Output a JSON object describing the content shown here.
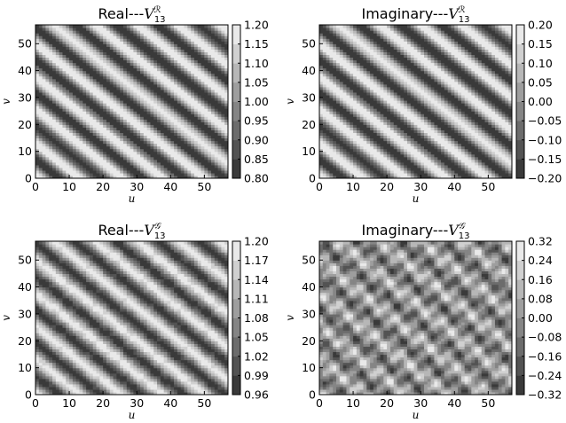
{
  "chart_data": [
    {
      "type": "heatmap",
      "title_prefix": "Real---",
      "title_sym": "V",
      "title_sub": "13",
      "title_sup": "ℛ",
      "xlabel": "u",
      "ylabel": "v",
      "xlim": [
        0,
        57
      ],
      "ylim": [
        0,
        57
      ],
      "xticks": [
        "0",
        "10",
        "20",
        "30",
        "40",
        "50"
      ],
      "yticks": [
        "0",
        "10",
        "20",
        "30",
        "40",
        "50"
      ],
      "period": 12.3,
      "noise": 0,
      "colorbar": {
        "min": 0.8,
        "max": 1.2,
        "ticks": [
          "1.20",
          "1.15",
          "1.10",
          "1.05",
          "1.00",
          "0.95",
          "0.90",
          "0.85",
          "0.80"
        ],
        "levels": 8
      }
    },
    {
      "type": "heatmap",
      "title_prefix": "Imaginary---",
      "title_sym": "V",
      "title_sub": "13",
      "title_sup": "ℛ",
      "xlabel": "u",
      "ylabel": "v",
      "xlim": [
        0,
        57
      ],
      "ylim": [
        0,
        57
      ],
      "xticks": [
        "0",
        "10",
        "20",
        "30",
        "40",
        "50"
      ],
      "yticks": [
        "0",
        "10",
        "20",
        "30",
        "40",
        "50"
      ],
      "period": 12.3,
      "noise": 0,
      "colorbar": {
        "min": -0.2,
        "max": 0.2,
        "ticks": [
          "0.20",
          "0.15",
          "0.10",
          "0.05",
          "0.00",
          "−0.05",
          "−0.10",
          "−0.15",
          "−0.20"
        ],
        "levels": 8
      }
    },
    {
      "type": "heatmap",
      "title_prefix": "Real---",
      "title_sym": "V",
      "title_sub": "13",
      "title_sup": "𝒢",
      "xlabel": "u",
      "ylabel": "v",
      "xlim": [
        0,
        57
      ],
      "ylim": [
        0,
        57
      ],
      "xticks": [
        "0",
        "10",
        "20",
        "30",
        "40",
        "50"
      ],
      "yticks": [
        "0",
        "10",
        "20",
        "30",
        "40",
        "50"
      ],
      "period": 12.3,
      "noise": 0.12,
      "colorbar": {
        "min": 0.96,
        "max": 1.2,
        "ticks": [
          "1.20",
          "1.17",
          "1.14",
          "1.11",
          "1.08",
          "1.05",
          "1.02",
          "0.99",
          "0.96"
        ],
        "levels": 8
      }
    },
    {
      "type": "heatmap",
      "title_prefix": "Imaginary---",
      "title_sym": "V",
      "title_sub": "13",
      "title_sup": "𝒢",
      "xlabel": "u",
      "ylabel": "v",
      "xlim": [
        0,
        57
      ],
      "ylim": [
        0,
        57
      ],
      "xticks": [
        "0",
        "10",
        "20",
        "30",
        "40",
        "50"
      ],
      "yticks": [
        "0",
        "10",
        "20",
        "30",
        "40",
        "50"
      ],
      "period": 12.3,
      "noise": 0.55,
      "colorbar": {
        "min": -0.32,
        "max": 0.32,
        "ticks": [
          "0.32",
          "0.24",
          "0.16",
          "0.08",
          "0.00",
          "−0.08",
          "−0.16",
          "−0.24",
          "−0.32"
        ],
        "levels": 8
      }
    }
  ]
}
